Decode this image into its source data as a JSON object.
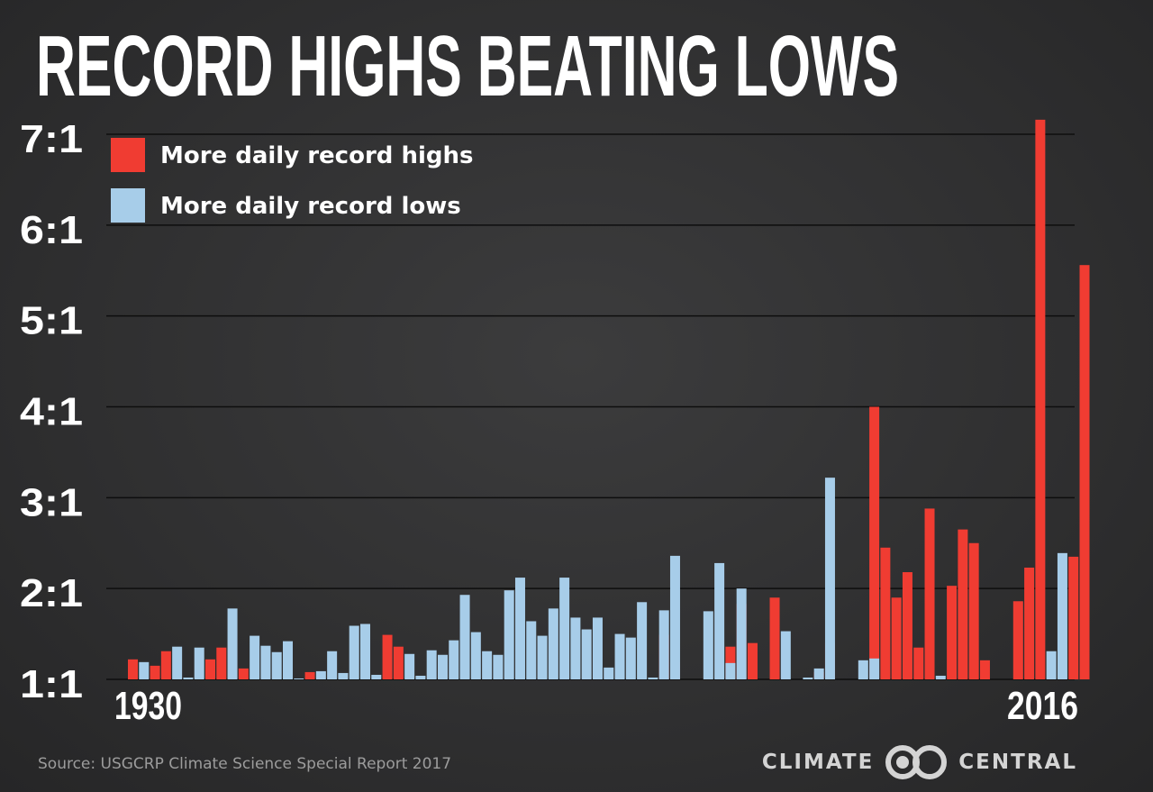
{
  "title": "RECORD HIGHS BEATING LOWS",
  "source": "Source: USGCRP Climate Science Special Report 2017",
  "brand": {
    "left": "CLIMATE",
    "right": "CENTRAL",
    "logo_icon": "interlocking-rings-icon"
  },
  "colors": {
    "highs": "#f03c32",
    "lows": "#a7cde9",
    "grid": "#0e0e0e",
    "axis_text": "#ffffff"
  },
  "chart_data": {
    "type": "bar",
    "title": "RECORD HIGHS BEATING LOWS",
    "xlabel": "",
    "ylabel": "",
    "x_tick_labels": [
      "1930",
      "2016"
    ],
    "y_tick_labels": [
      "1:1",
      "2:1",
      "3:1",
      "4:1",
      "5:1",
      "6:1",
      "7:1"
    ],
    "ylim": [
      1,
      7
    ],
    "grid": true,
    "legend": {
      "placement": "top-left",
      "entries": [
        {
          "name": "More daily record highs",
          "key": "highs"
        },
        {
          "name": "More daily record lows",
          "key": "lows"
        }
      ]
    },
    "years": [
      1930,
      1931,
      1932,
      1933,
      1934,
      1935,
      1936,
      1937,
      1938,
      1939,
      1940,
      1941,
      1942,
      1943,
      1944,
      1945,
      1946,
      1947,
      1948,
      1949,
      1950,
      1951,
      1952,
      1953,
      1954,
      1955,
      1956,
      1957,
      1958,
      1959,
      1960,
      1961,
      1962,
      1963,
      1964,
      1965,
      1966,
      1967,
      1968,
      1969,
      1970,
      1971,
      1972,
      1973,
      1974,
      1975,
      1976,
      1977,
      1978,
      1979,
      1980,
      1981,
      1982,
      1983,
      1984,
      1985,
      1986,
      1987,
      1988,
      1989,
      1990,
      1991,
      1992,
      1993,
      1994,
      1995,
      1996,
      1997,
      1998,
      1999,
      2000,
      2001,
      2002,
      2003,
      2004,
      2005,
      2006,
      2007,
      2008,
      2009,
      2010,
      2011,
      2012,
      2013,
      2014,
      2015,
      2016
    ],
    "series": [
      {
        "name": "More daily record highs",
        "key": "highs",
        "values": [
          1.22,
          null,
          1.15,
          1.31,
          null,
          null,
          null,
          1.22,
          1.35,
          null,
          1.12,
          null,
          null,
          null,
          null,
          null,
          1.08,
          null,
          null,
          null,
          null,
          null,
          null,
          1.49,
          1.36,
          null,
          null,
          null,
          null,
          null,
          null,
          null,
          null,
          null,
          null,
          null,
          null,
          null,
          null,
          null,
          null,
          null,
          null,
          null,
          null,
          null,
          null,
          null,
          1.49,
          1.19,
          null,
          null,
          null,
          null,
          1.36,
          1.83,
          1.4,
          null,
          1.9,
          null,
          null,
          null,
          1.08,
          1.4,
          null,
          null,
          null,
          4.0,
          2.45,
          1.9,
          2.18,
          1.35,
          2.88,
          null,
          2.03,
          2.65,
          2.5,
          1.21,
          null,
          null,
          1.86,
          2.23,
          7.16,
          null,
          null,
          2.35,
          5.56
        ]
      },
      {
        "name": "More daily record lows",
        "key": "lows",
        "values": [
          null,
          1.19,
          null,
          null,
          1.36,
          1.02,
          1.35,
          null,
          null,
          1.78,
          null,
          1.48,
          1.37,
          1.3,
          1.42,
          1.01,
          null,
          1.09,
          1.31,
          1.07,
          1.59,
          1.61,
          1.05,
          null,
          null,
          1.28,
          1.04,
          1.32,
          1.27,
          1.43,
          1.93,
          1.52,
          1.31,
          1.27,
          1.98,
          2.12,
          1.64,
          1.48,
          1.78,
          2.12,
          1.68,
          1.55,
          1.68,
          1.13,
          1.5,
          1.46,
          1.85,
          1.02,
          1.76,
          2.36,
          null,
          null,
          1.75,
          2.28,
          1.18,
          2.0,
          null,
          null,
          null,
          1.53,
          null,
          1.02,
          1.12,
          3.22,
          null,
          null,
          1.21,
          1.23,
          null,
          null,
          null,
          null,
          null,
          1.04,
          null,
          null,
          null,
          null,
          null,
          null,
          null,
          null,
          null,
          1.31,
          2.39,
          null,
          null
        ]
      }
    ]
  }
}
